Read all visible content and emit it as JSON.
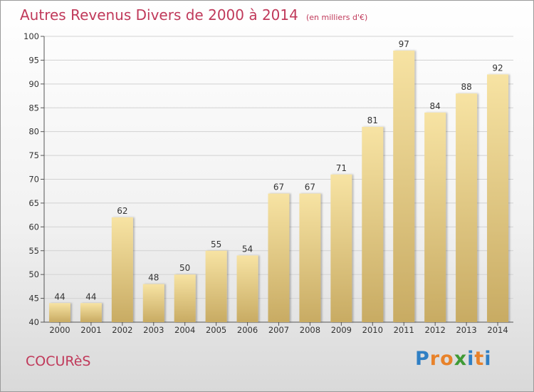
{
  "chart_data": {
    "type": "bar",
    "title": "Autres Revenus Divers de 2000 à 2014",
    "subtitle": "(en milliers d'€)",
    "categories": [
      "2000",
      "2001",
      "2002",
      "2003",
      "2004",
      "2005",
      "2006",
      "2007",
      "2008",
      "2009",
      "2010",
      "2011",
      "2012",
      "2013",
      "2014"
    ],
    "values": [
      44,
      44,
      62,
      48,
      50,
      55,
      54,
      67,
      67,
      71,
      81,
      97,
      84,
      88,
      92
    ],
    "ylim": [
      40,
      100
    ],
    "yticks": [
      40,
      45,
      50,
      55,
      60,
      65,
      70,
      75,
      80,
      85,
      90,
      95,
      100
    ],
    "grid": true,
    "bar_color_top": "#f7e3a3",
    "bar_color_bottom": "#c8ab63"
  },
  "location": "COCURèS",
  "logo": {
    "text": "Proxiti",
    "letters": [
      {
        "char": "P",
        "color": "#2f7fc4"
      },
      {
        "char": "r",
        "color": "#e8822a"
      },
      {
        "char": "o",
        "color": "#e8822a"
      },
      {
        "char": "x",
        "color": "#3f9a35"
      },
      {
        "char": "i",
        "color": "#2f7fc4"
      },
      {
        "char": "t",
        "color": "#e8822a"
      },
      {
        "char": "i",
        "color": "#2f7fc4"
      }
    ]
  }
}
